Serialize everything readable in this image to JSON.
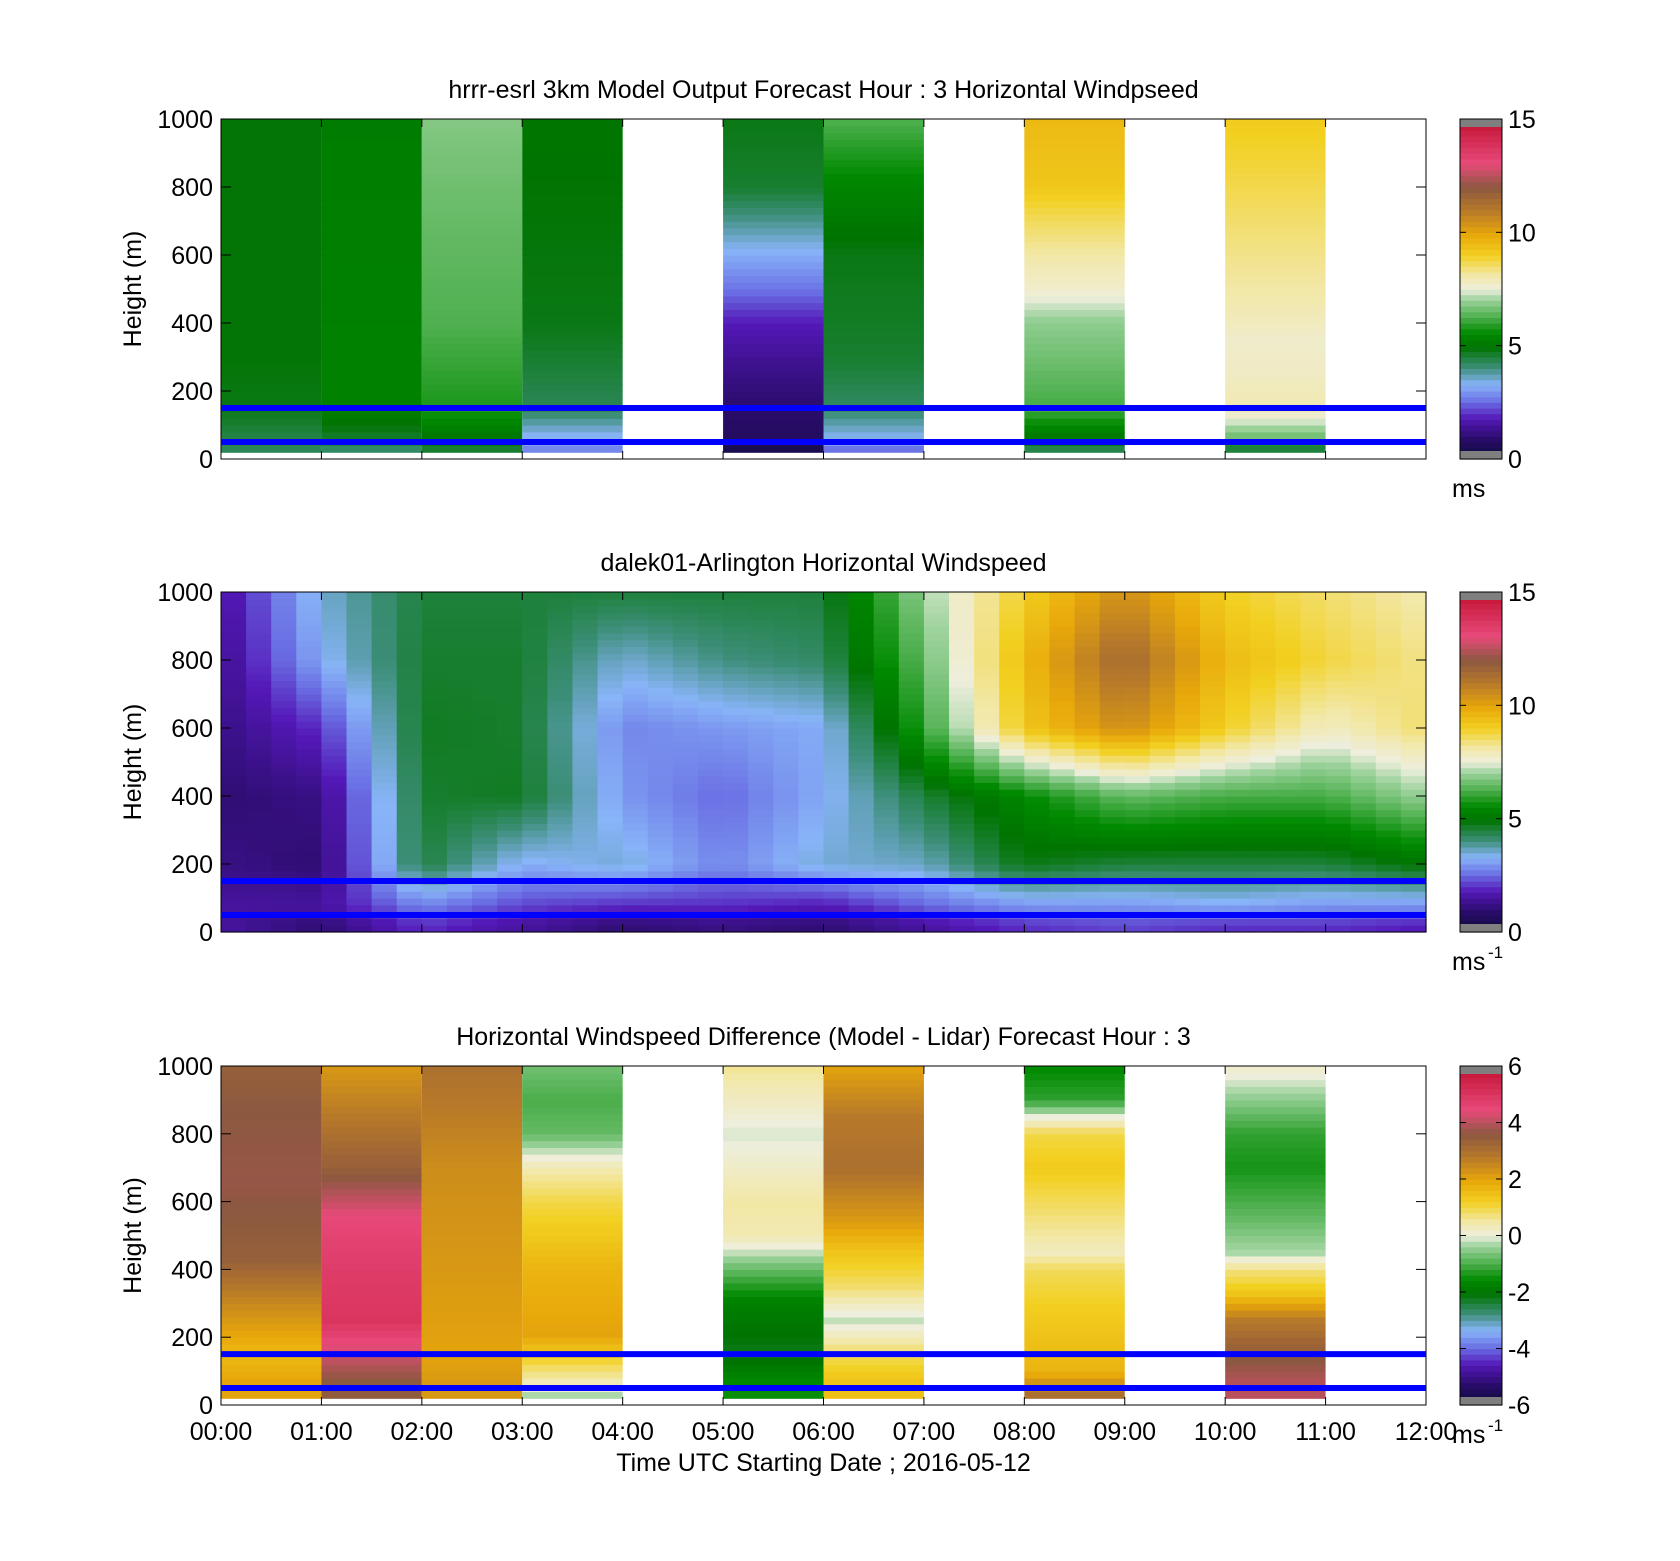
{
  "figure": {
    "x_tick_labels": [
      "00:00",
      "01:00",
      "02:00",
      "03:00",
      "04:00",
      "05:00",
      "06:00",
      "07:00",
      "08:00",
      "09:00",
      "10:00",
      "11:00",
      "12:00"
    ],
    "x_label": "Time UTC  Starting Date ; 2016-05-12"
  },
  "chart_data": [
    {
      "type": "heatmap",
      "title": "hrrr-esrl 3km Model Output   Forecast Hour : 3 Horizontal Windpseed",
      "ylabel": "Height (m)",
      "ylim": [
        0,
        1000
      ],
      "y_ticks": [
        0,
        200,
        400,
        600,
        800,
        1000
      ],
      "xlim_hours": [
        0,
        12
      ],
      "colorbar": {
        "min": 0,
        "max": 15,
        "ticks": [
          0,
          5,
          10,
          15
        ],
        "unit_label": "ms",
        "unit_exp": ""
      },
      "reference_lines_m": [
        50,
        150
      ],
      "columns": [
        {
          "t": 0,
          "dt": 1,
          "profile": [
            [
              30,
              4.3
            ],
            [
              60,
              4.4
            ],
            [
              150,
              4.8
            ],
            [
              300,
              4.9
            ],
            [
              600,
              4.9
            ],
            [
              1000,
              4.9
            ]
          ]
        },
        {
          "t": 1,
          "dt": 1,
          "profile": [
            [
              30,
              4.2
            ],
            [
              60,
              4.6
            ],
            [
              150,
              5.3
            ],
            [
              350,
              5.3
            ],
            [
              1000,
              5.2
            ]
          ]
        },
        {
          "t": 2,
          "dt": 1,
          "profile": [
            [
              30,
              4.6
            ],
            [
              60,
              5.0
            ],
            [
              150,
              5.8
            ],
            [
              400,
              6.3
            ],
            [
              800,
              6.6
            ],
            [
              1000,
              6.8
            ]
          ]
        },
        {
          "t": 3,
          "dt": 1,
          "profile": [
            [
              30,
              2.8
            ],
            [
              60,
              3.2
            ],
            [
              150,
              4.3
            ],
            [
              400,
              4.8
            ],
            [
              1000,
              5.0
            ]
          ]
        },
        {
          "t": 5,
          "dt": 1,
          "profile": [
            [
              30,
              0.4
            ],
            [
              60,
              0.7
            ],
            [
              150,
              0.9
            ],
            [
              300,
              1.4
            ],
            [
              400,
              1.8
            ],
            [
              500,
              2.6
            ],
            [
              600,
              3.2
            ],
            [
              700,
              3.9
            ],
            [
              800,
              4.6
            ],
            [
              1000,
              4.8
            ]
          ]
        },
        {
          "t": 6,
          "dt": 1,
          "profile": [
            [
              30,
              2.6
            ],
            [
              60,
              3.3
            ],
            [
              150,
              4.2
            ],
            [
              300,
              4.6
            ],
            [
              600,
              4.8
            ],
            [
              800,
              5.4
            ],
            [
              1000,
              6.3
            ]
          ]
        },
        {
          "t": 8,
          "dt": 1,
          "profile": [
            [
              30,
              4.4
            ],
            [
              60,
              5.0
            ],
            [
              150,
              6.2
            ],
            [
              400,
              6.9
            ],
            [
              500,
              7.7
            ],
            [
              600,
              8.1
            ],
            [
              700,
              8.6
            ],
            [
              800,
              9.2
            ],
            [
              1000,
              9.5
            ]
          ]
        },
        {
          "t": 10,
          "dt": 1,
          "profile": [
            [
              30,
              4.5
            ],
            [
              60,
              6.5
            ],
            [
              150,
              8.0
            ],
            [
              250,
              7.8
            ],
            [
              350,
              7.7
            ],
            [
              450,
              8.0
            ],
            [
              600,
              8.3
            ],
            [
              800,
              8.7
            ],
            [
              1000,
              9.1
            ]
          ]
        }
      ]
    },
    {
      "type": "heatmap",
      "title": "dalek01-Arlington  Horizontal Windspeed",
      "ylabel": "Height (m)",
      "ylim": [
        0,
        1000
      ],
      "y_ticks": [
        0,
        200,
        400,
        600,
        800,
        1000
      ],
      "xlim_hours": [
        0,
        12
      ],
      "colorbar": {
        "min": 0,
        "max": 15,
        "ticks": [
          0,
          5,
          10,
          15
        ],
        "unit_label": "ms",
        "unit_exp": "-1"
      },
      "reference_lines_m": [
        50,
        150
      ],
      "time_step_hours": 0.25,
      "lidar_speed_profiles": {
        "times_hours": [
          0.0,
          1.0,
          2.0,
          3.0,
          4.0,
          5.0,
          6.0,
          7.0,
          8.0,
          9.0,
          10.0,
          11.0,
          12.0
        ],
        "levels_m": [
          20,
          80,
          200,
          400,
          600,
          800,
          1000
        ],
        "speeds": [
          [
            1.5,
            1.5,
            1.2,
            1.0,
            1.2,
            1.3,
            1.5
          ],
          [
            1.0,
            1.5,
            1.0,
            1.2,
            2.0,
            3.2,
            3.5
          ],
          [
            2.0,
            2.8,
            4.5,
            4.6,
            4.7,
            4.6,
            4.5
          ],
          [
            1.5,
            2.2,
            3.2,
            4.7,
            4.6,
            4.6,
            4.5
          ],
          [
            1.0,
            2.0,
            3.5,
            3.0,
            2.8,
            3.5,
            4.5
          ],
          [
            1.2,
            2.0,
            2.8,
            2.5,
            3.0,
            4.0,
            4.5
          ],
          [
            1.0,
            1.8,
            3.5,
            3.2,
            3.2,
            4.2,
            4.5
          ],
          [
            1.5,
            2.5,
            3.6,
            4.5,
            6.0,
            6.5,
            7.0
          ],
          [
            2.0,
            3.0,
            4.8,
            5.5,
            9.2,
            9.5,
            9.0
          ],
          [
            2.2,
            3.0,
            4.5,
            6.5,
            10.5,
            11.5,
            10.5
          ],
          [
            2.0,
            3.2,
            4.5,
            6.2,
            9.0,
            9.5,
            9.0
          ],
          [
            2.0,
            3.0,
            4.5,
            6.2,
            7.8,
            8.8,
            8.5
          ],
          [
            1.8,
            3.0,
            5.0,
            7.0,
            8.5,
            8.3,
            8.0
          ]
        ]
      }
    },
    {
      "type": "heatmap",
      "title": "Horizontal Windspeed Difference (Model - Lidar) Forecast Hour : 3",
      "ylabel": "Height (m)",
      "ylim": [
        0,
        1000
      ],
      "y_ticks": [
        0,
        200,
        400,
        600,
        800,
        1000
      ],
      "xlim_hours": [
        0,
        12
      ],
      "colorbar": {
        "min": -6,
        "max": 6,
        "ticks": [
          -6,
          -4,
          -2,
          0,
          2,
          4,
          6
        ],
        "unit_label": "ms",
        "unit_exp": "-1"
      },
      "reference_lines_m": [
        50,
        150
      ],
      "columns": [
        {
          "t": 0,
          "dt": 1,
          "profile": [
            [
              60,
              2.0
            ],
            [
              150,
              1.6
            ],
            [
              300,
              2.5
            ],
            [
              430,
              3.4
            ],
            [
              500,
              3.5
            ],
            [
              660,
              3.7
            ],
            [
              860,
              3.6
            ],
            [
              1000,
              3.4
            ]
          ]
        },
        {
          "t": 1,
          "dt": 1,
          "profile": [
            [
              60,
              3.5
            ],
            [
              150,
              4.2
            ],
            [
              250,
              5.0
            ],
            [
              400,
              4.8
            ],
            [
              550,
              4.5
            ],
            [
              700,
              3.4
            ],
            [
              800,
              3.0
            ],
            [
              1000,
              2.2
            ]
          ]
        },
        {
          "t": 2,
          "dt": 1,
          "profile": [
            [
              60,
              2.2
            ],
            [
              150,
              2.0
            ],
            [
              400,
              2.2
            ],
            [
              700,
              2.4
            ],
            [
              1000,
              3.0
            ]
          ]
        },
        {
          "t": 3,
          "dt": 1,
          "profile": [
            [
              30,
              -0.3
            ],
            [
              80,
              0.5
            ],
            [
              210,
              2.0
            ],
            [
              400,
              1.7
            ],
            [
              600,
              1.0
            ],
            [
              700,
              0.4
            ],
            [
              800,
              -0.8
            ],
            [
              900,
              -1.0
            ],
            [
              1000,
              -0.7
            ]
          ]
        },
        {
          "t": 5,
          "dt": 1,
          "profile": [
            [
              60,
              -1.5
            ],
            [
              150,
              -2.2
            ],
            [
              300,
              -1.8
            ],
            [
              400,
              -0.8
            ],
            [
              500,
              0.4
            ],
            [
              600,
              0.5
            ],
            [
              700,
              0.2
            ],
            [
              800,
              -0.1
            ],
            [
              1000,
              0.6
            ]
          ]
        },
        {
          "t": 6,
          "dt": 1,
          "profile": [
            [
              60,
              1.5
            ],
            [
              150,
              0.9
            ],
            [
              250,
              -0.2
            ],
            [
              350,
              0.8
            ],
            [
              450,
              1.4
            ],
            [
              550,
              2.2
            ],
            [
              700,
              3.0
            ],
            [
              850,
              2.8
            ],
            [
              1000,
              2.0
            ]
          ]
        },
        {
          "t": 8,
          "dt": 1,
          "profile": [
            [
              30,
              3.0
            ],
            [
              100,
              1.7
            ],
            [
              300,
              1.2
            ],
            [
              400,
              0.9
            ],
            [
              450,
              0.3
            ],
            [
              500,
              0.5
            ],
            [
              700,
              1.3
            ],
            [
              800,
              1.0
            ],
            [
              850,
              0.0
            ],
            [
              900,
              -1.2
            ],
            [
              1000,
              -1.6
            ]
          ]
        },
        {
          "t": 10,
          "dt": 1,
          "profile": [
            [
              60,
              4.0
            ],
            [
              150,
              3.5
            ],
            [
              250,
              2.8
            ],
            [
              330,
              1.4
            ],
            [
              400,
              0.7
            ],
            [
              450,
              -0.3
            ],
            [
              550,
              -0.8
            ],
            [
              700,
              -1.4
            ],
            [
              800,
              -1.2
            ],
            [
              900,
              -0.5
            ],
            [
              1000,
              0.2
            ]
          ]
        }
      ]
    }
  ]
}
